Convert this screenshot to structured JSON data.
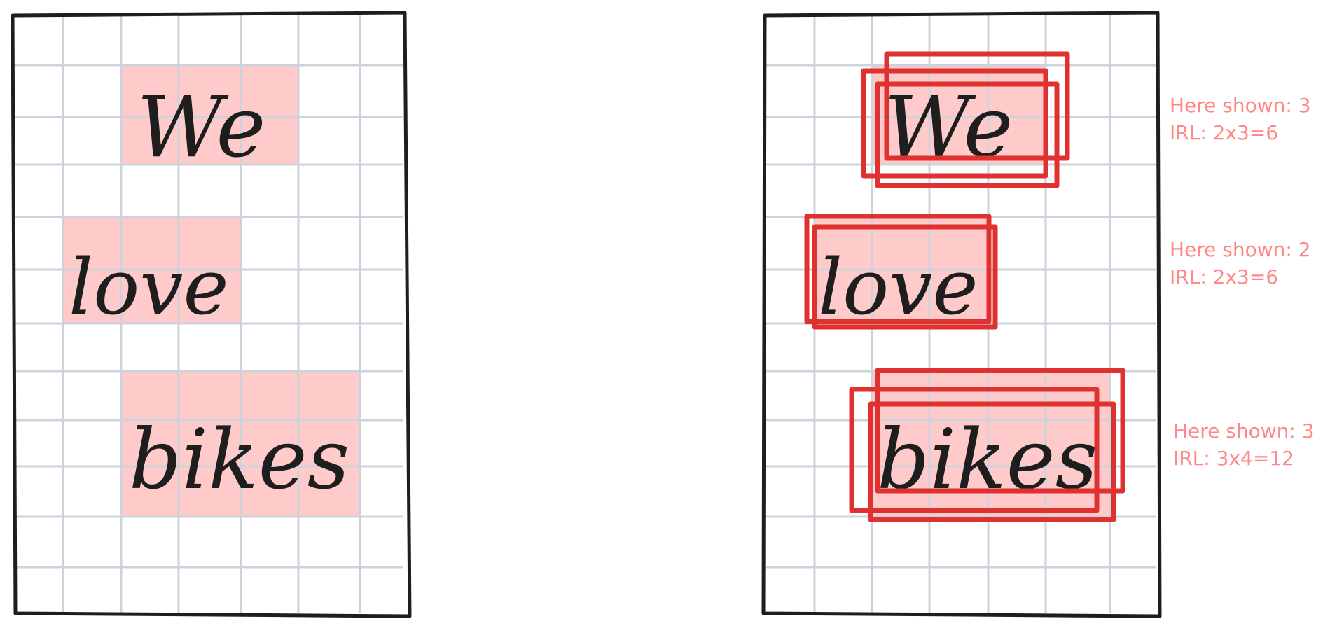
{
  "words": [
    {
      "id": "we",
      "text": "We"
    },
    {
      "id": "love",
      "text": "love"
    },
    {
      "id": "bikes",
      "text": "bikes"
    }
  ],
  "annotations": [
    {
      "id": "we",
      "shown": "Here shown: 3",
      "irl": "IRL: 2x3=6"
    },
    {
      "id": "love",
      "shown": "Here shown: 2",
      "irl": "IRL: 2x3=6"
    },
    {
      "id": "bikes",
      "shown": "Here shown: 3",
      "irl": "IRL: 3x4=12"
    }
  ],
  "colors": {
    "grid": "#cdd3dc",
    "frame": "#1e1e1e",
    "highlight": "#ffcaca",
    "box": "#e03131",
    "annotation": "#ff8787"
  }
}
